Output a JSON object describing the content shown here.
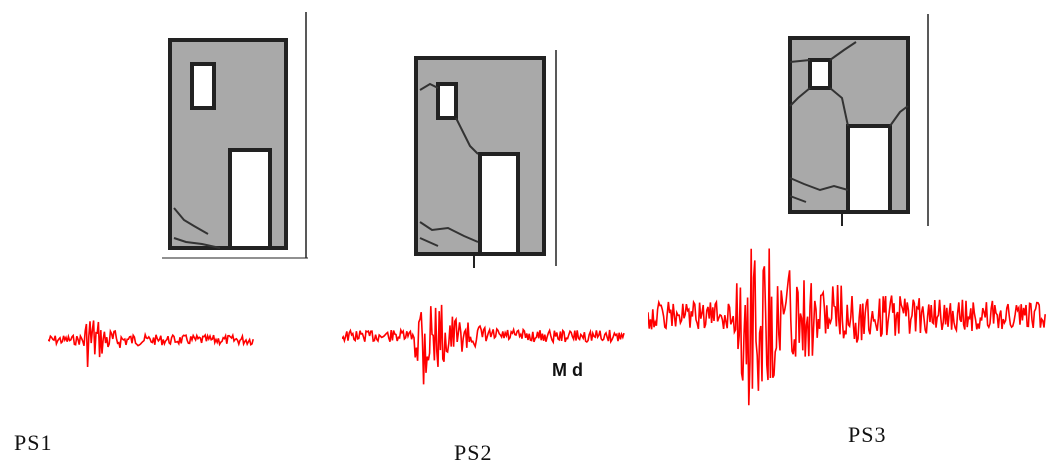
{
  "figures": [
    {
      "id": "ps1",
      "label": "PS1"
    },
    {
      "id": "ps2",
      "label": "PS2",
      "annotation": "M d"
    },
    {
      "id": "ps3",
      "label": "PS3"
    }
  ],
  "colors": {
    "wall": "#a9a9a9",
    "wall_texture": "#8a8a8a",
    "outline": "#222222",
    "crack": "#333333",
    "signal": "#ff0000",
    "opening": "#ffffff"
  }
}
